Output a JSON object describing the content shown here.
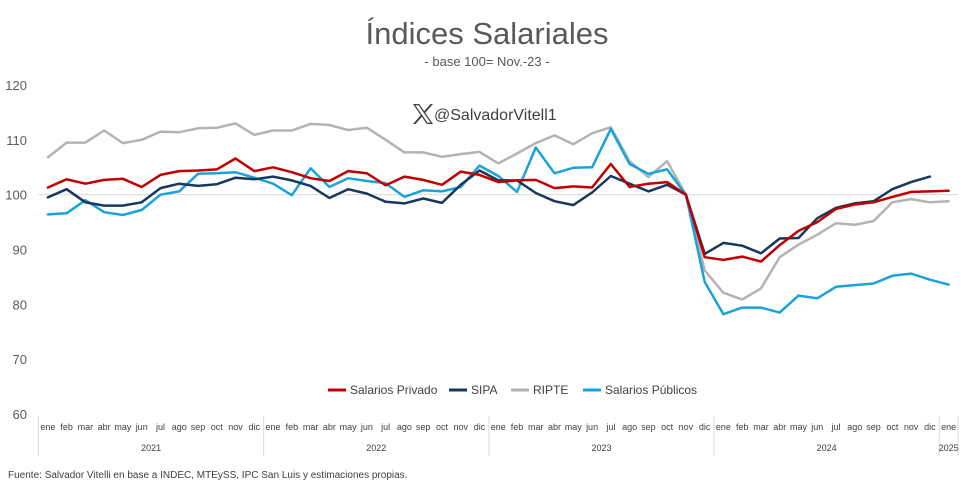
{
  "colors": {
    "Salarios Privado": "#c00000",
    "SIPA": "#17375e",
    "RIPTE": "#b3b3b3",
    "Salarios Públicos": "#1aa3db"
  },
  "watermark": "@SalvadorVitell1",
  "source": "Fuente: Salvador Vitelli en base a INDEC, MTEySS, IPC San Luis y estimaciones propias.",
  "chart_data": {
    "type": "line",
    "title": "Índices Salariales",
    "subtitle": "- base 100= Nov.-23 -",
    "xlabel": "",
    "ylabel": "",
    "ylim": [
      60,
      120
    ],
    "yticks": [
      60,
      70,
      80,
      90,
      100,
      110,
      120
    ],
    "grid": false,
    "reference_line": 100,
    "legend_position": "bottom-center",
    "categories": [
      "ene",
      "feb",
      "mar",
      "abr",
      "may",
      "jun",
      "jul",
      "ago",
      "sep",
      "oct",
      "nov",
      "dic",
      "ene",
      "feb",
      "mar",
      "abr",
      "may",
      "jun",
      "jul",
      "ago",
      "sep",
      "oct",
      "nov",
      "dic",
      "ene",
      "feb",
      "mar",
      "abr",
      "may",
      "jun",
      "jul",
      "ago",
      "sep",
      "oct",
      "nov",
      "dic",
      "ene",
      "feb",
      "mar",
      "abr",
      "may",
      "jun",
      "jul",
      "ago",
      "sep",
      "oct",
      "nov",
      "dic",
      "ene"
    ],
    "years": [
      {
        "label": "2021",
        "start": 0,
        "end": 11
      },
      {
        "label": "2022",
        "start": 12,
        "end": 23
      },
      {
        "label": "2023",
        "start": 24,
        "end": 35
      },
      {
        "label": "2024",
        "start": 36,
        "end": 47
      },
      {
        "label": "2025",
        "start": 48,
        "end": 48
      }
    ],
    "series": [
      {
        "name": "Salarios Privado",
        "values": [
          101.3,
          102.8,
          102.0,
          102.7,
          102.9,
          101.4,
          103.6,
          104.3,
          104.4,
          104.6,
          106.6,
          104.3,
          105.0,
          104.1,
          103.0,
          102.5,
          104.3,
          103.9,
          101.7,
          103.3,
          102.7,
          101.8,
          104.2,
          103.6,
          102.3,
          102.6,
          102.7,
          101.2,
          101.5,
          101.3,
          105.6,
          101.4,
          102.0,
          102.3,
          100.0,
          88.6,
          88.1,
          88.7,
          87.8,
          90.8,
          93.4,
          95.0,
          97.4,
          98.2,
          98.6,
          99.6,
          100.5,
          100.6,
          100.7
        ]
      },
      {
        "name": "SIPA",
        "values": [
          99.5,
          101.0,
          98.6,
          98.0,
          98.0,
          98.6,
          101.2,
          102.0,
          101.6,
          101.9,
          103.1,
          102.8,
          103.3,
          102.6,
          101.6,
          99.4,
          101.0,
          100.2,
          98.7,
          98.4,
          99.3,
          98.5,
          101.8,
          104.4,
          102.6,
          102.6,
          100.3,
          98.8,
          98.1,
          100.4,
          103.4,
          102.0,
          100.6,
          101.8,
          100.0,
          89.2,
          91.2,
          90.7,
          89.3,
          92.0,
          92.1,
          95.7,
          97.6,
          98.4,
          98.8,
          101.0,
          102.3,
          103.3,
          null
        ]
      },
      {
        "name": "RIPTE",
        "values": [
          106.8,
          109.5,
          109.5,
          111.7,
          109.4,
          110.0,
          111.5,
          111.4,
          112.1,
          112.2,
          113.0,
          110.9,
          111.7,
          111.7,
          112.9,
          112.7,
          111.8,
          112.2,
          110.0,
          107.7,
          107.7,
          106.9,
          107.4,
          107.8,
          105.7,
          107.5,
          109.4,
          110.8,
          109.2,
          111.2,
          112.3,
          106.1,
          103.2,
          106.1,
          100.0,
          86.2,
          82.1,
          80.9,
          82.9,
          88.6,
          90.9,
          92.7,
          94.8,
          94.5,
          95.2,
          98.6,
          99.2,
          98.6,
          98.8
        ]
      },
      {
        "name": "Salarios Públicos",
        "values": [
          96.4,
          96.6,
          99.0,
          96.8,
          96.3,
          97.2,
          100.0,
          100.6,
          103.8,
          103.9,
          104.1,
          103.1,
          102.0,
          99.9,
          104.8,
          101.4,
          103.0,
          102.5,
          102.1,
          99.6,
          100.8,
          100.6,
          101.4,
          105.3,
          103.4,
          100.5,
          108.6,
          103.9,
          104.9,
          105.0,
          112.0,
          105.6,
          103.8,
          104.6,
          100.0,
          84.1,
          78.2,
          79.4,
          79.4,
          78.5,
          81.6,
          81.1,
          83.2,
          83.5,
          83.8,
          85.2,
          85.6,
          84.5,
          83.6
        ]
      }
    ]
  }
}
